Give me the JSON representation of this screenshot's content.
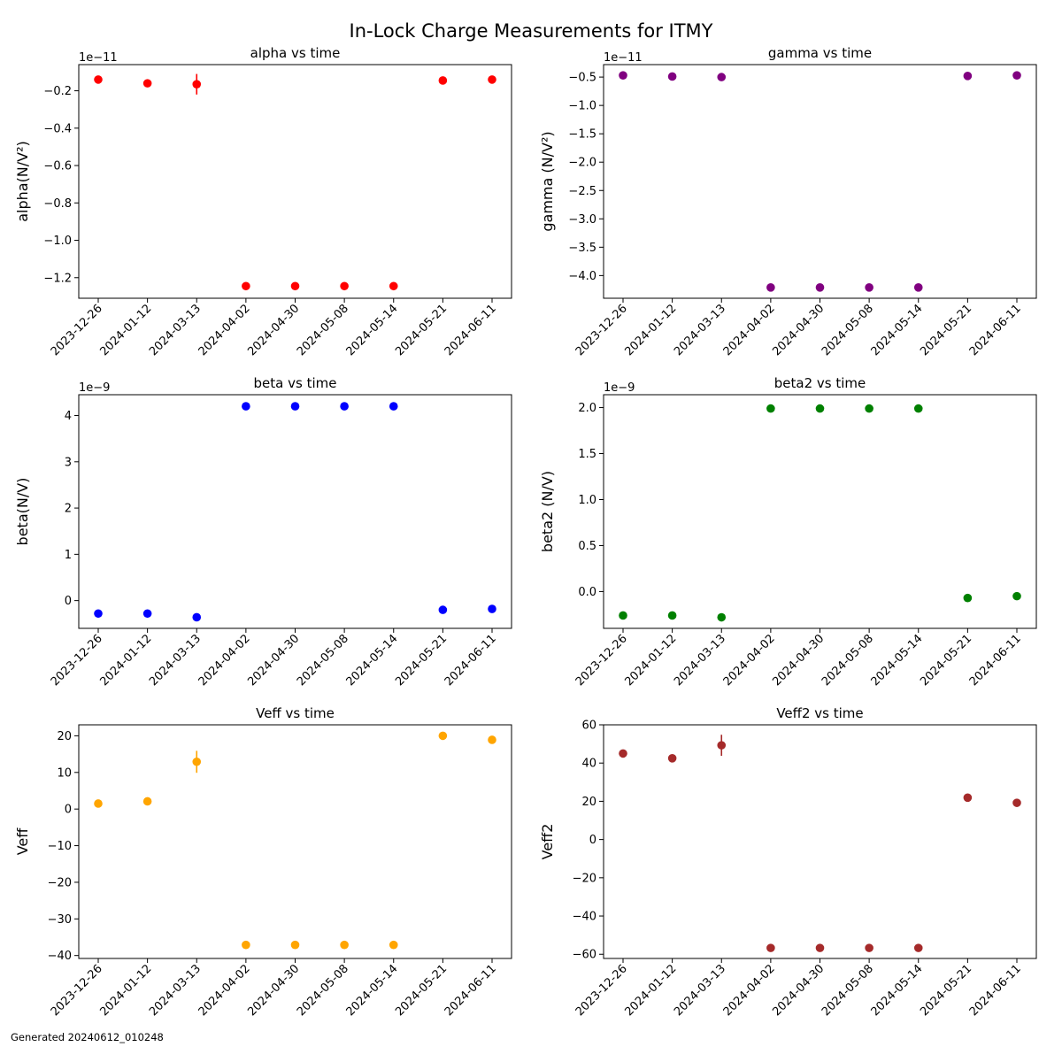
{
  "figure": {
    "title": "In-Lock Charge Measurements for ITMY",
    "footer": "Generated 20240612_010248"
  },
  "chart_data": [
    {
      "type": "scatter",
      "title": "alpha vs time",
      "ylabel": "alpha(N/V²)",
      "xlabel": "",
      "offset_text": "1e−11",
      "x": [
        "2023-12-26",
        "2024-01-12",
        "2024-03-13",
        "2024-04-02",
        "2024-04-30",
        "2024-05-08",
        "2024-05-14",
        "2024-05-21",
        "2024-06-11"
      ],
      "values": [
        -1.4e-12,
        -1.6e-12,
        -1.65e-12,
        -1.245e-11,
        -1.245e-11,
        -1.245e-11,
        -1.245e-11,
        -1.45e-12,
        -1.4e-12
      ],
      "errors": [
        5e-14,
        1.5e-13,
        5.5e-13,
        0,
        0,
        0,
        0,
        0,
        0
      ],
      "color": "#ff0000",
      "ylim": [
        -1.31e-11,
        -6e-13
      ],
      "yticks": [
        -2e-12,
        -4e-12,
        -6e-12,
        -8e-12,
        -1e-11,
        -1.2e-11
      ],
      "ytick_labels": [
        "−0.2",
        "−0.4",
        "−0.6",
        "−0.8",
        "−1.0",
        "−1.2"
      ],
      "grid": false
    },
    {
      "type": "scatter",
      "title": "gamma vs time",
      "ylabel": "gamma (N/V²)",
      "xlabel": "",
      "offset_text": "1e−11",
      "x": [
        "2023-12-26",
        "2024-01-12",
        "2024-03-13",
        "2024-04-02",
        "2024-04-30",
        "2024-05-08",
        "2024-05-14",
        "2024-05-21",
        "2024-06-11"
      ],
      "values": [
        -4.7e-12,
        -4.9e-12,
        -5e-12,
        -4.21e-11,
        -4.21e-11,
        -4.21e-11,
        -4.21e-11,
        -4.8e-12,
        -4.7e-12
      ],
      "errors": [
        0,
        0,
        0,
        0,
        0,
        0,
        0,
        0,
        0
      ],
      "color": "#800080",
      "ylim": [
        -4.4e-11,
        -2.8e-12
      ],
      "yticks": [
        -5e-12,
        -1e-11,
        -1.5e-11,
        -2e-11,
        -2.5e-11,
        -3e-11,
        -3.5e-11,
        -4e-11
      ],
      "ytick_labels": [
        "−0.5",
        "−1.0",
        "−1.5",
        "−2.0",
        "−2.5",
        "−3.0",
        "−3.5",
        "−4.0"
      ],
      "grid": false
    },
    {
      "type": "scatter",
      "title": "beta vs time",
      "ylabel": "beta(N/V)",
      "xlabel": "",
      "offset_text": "1e−9",
      "x": [
        "2023-12-26",
        "2024-01-12",
        "2024-03-13",
        "2024-04-02",
        "2024-04-30",
        "2024-05-08",
        "2024-05-14",
        "2024-05-21",
        "2024-06-11"
      ],
      "values": [
        -2.8e-10,
        -2.8e-10,
        -3.6e-10,
        4.2e-09,
        4.2e-09,
        4.2e-09,
        4.2e-09,
        -2e-10,
        -1.8e-10
      ],
      "errors": [
        0,
        0,
        0,
        0,
        0,
        0,
        0,
        0,
        0
      ],
      "color": "#0000ff",
      "ylim": [
        -6e-10,
        4.45e-09
      ],
      "yticks": [
        0,
        1e-09,
        2e-09,
        3e-09,
        4e-09
      ],
      "ytick_labels": [
        "0",
        "1",
        "2",
        "3",
        "4"
      ],
      "grid": false
    },
    {
      "type": "scatter",
      "title": "beta2 vs time",
      "ylabel": "beta2 (N/V)",
      "xlabel": "",
      "offset_text": "1e−9",
      "x": [
        "2023-12-26",
        "2024-01-12",
        "2024-03-13",
        "2024-04-02",
        "2024-04-30",
        "2024-05-08",
        "2024-05-14",
        "2024-05-21",
        "2024-06-11"
      ],
      "values": [
        -2.6e-10,
        -2.6e-10,
        -2.8e-10,
        1.99e-09,
        1.99e-09,
        1.99e-09,
        1.99e-09,
        -7e-11,
        -5e-11
      ],
      "errors": [
        0,
        0,
        0,
        0,
        0,
        0,
        0,
        0,
        0
      ],
      "color": "#008000",
      "ylim": [
        -4e-10,
        2.14e-09
      ],
      "yticks": [
        0,
        5e-10,
        1e-09,
        1.5e-09,
        2e-09
      ],
      "ytick_labels": [
        "0.0",
        "0.5",
        "1.0",
        "1.5",
        "2.0"
      ],
      "grid": false
    },
    {
      "type": "scatter",
      "title": "Veff vs time",
      "ylabel": "Veff",
      "xlabel": "",
      "offset_text": "",
      "x": [
        "2023-12-26",
        "2024-01-12",
        "2024-03-13",
        "2024-04-02",
        "2024-04-30",
        "2024-05-08",
        "2024-05-14",
        "2024-05-21",
        "2024-06-11"
      ],
      "values": [
        1.5,
        2.1,
        12.9,
        -37.1,
        -37.1,
        -37.1,
        -37.1,
        20.0,
        18.9
      ],
      "errors": [
        0,
        0,
        3.0,
        0,
        0,
        0,
        0,
        0,
        0
      ],
      "color": "#ffa500",
      "ylim": [
        -40.8,
        23.0
      ],
      "yticks": [
        20,
        10,
        0,
        -10,
        -20,
        -30,
        -40
      ],
      "ytick_labels": [
        "20",
        "10",
        "0",
        "−10",
        "−20",
        "−30",
        "−40"
      ],
      "grid": false
    },
    {
      "type": "scatter",
      "title": "Veff2 vs time",
      "ylabel": "Veff2",
      "xlabel": "",
      "offset_text": "",
      "x": [
        "2023-12-26",
        "2024-01-12",
        "2024-03-13",
        "2024-04-02",
        "2024-04-30",
        "2024-05-08",
        "2024-05-14",
        "2024-05-21",
        "2024-06-11"
      ],
      "values": [
        45.0,
        42.5,
        49.3,
        -56.7,
        -56.7,
        -56.7,
        -56.7,
        21.9,
        19.2
      ],
      "errors": [
        0,
        1.0,
        5.5,
        0,
        0,
        0,
        0,
        0,
        0
      ],
      "color": "#a52a2a",
      "ylim": [
        -62.2,
        60.0
      ],
      "yticks": [
        60,
        40,
        20,
        0,
        -20,
        -40,
        -60
      ],
      "ytick_labels": [
        "60",
        "40",
        "20",
        "0",
        "−20",
        "−40",
        "−60"
      ],
      "grid": false
    }
  ]
}
